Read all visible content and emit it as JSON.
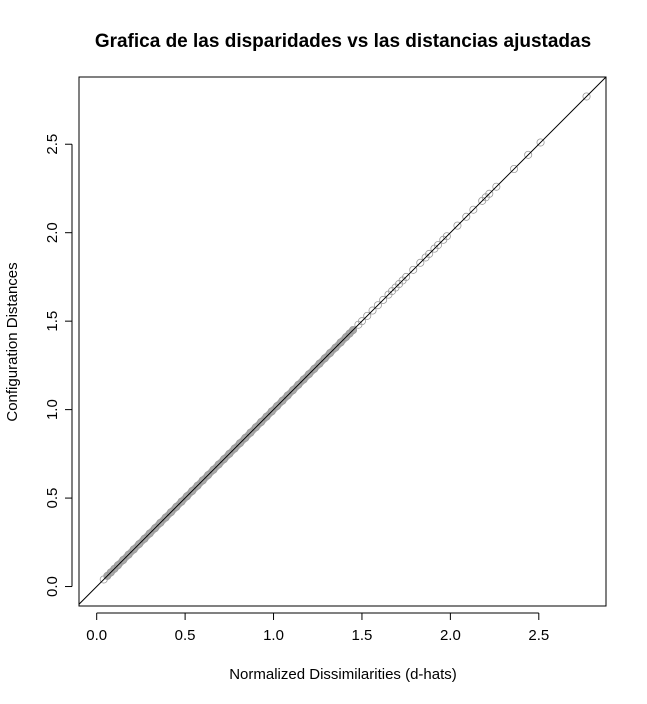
{
  "chart_data": {
    "type": "scatter",
    "title": "Grafica de las disparidades vs las distancias ajustadas",
    "xlabel": "Normalized Dissimilarities (d-hats)",
    "ylabel": "Configuration Distances",
    "xlim": [
      -0.1,
      2.88
    ],
    "ylim": [
      -0.11,
      2.88
    ],
    "x_ticks": [
      "0.0",
      "0.5",
      "1.0",
      "1.5",
      "2.0",
      "2.5"
    ],
    "y_ticks": [
      "0.0",
      "0.5",
      "1.0",
      "1.5",
      "2.0",
      "2.5"
    ],
    "reference_line": {
      "intercept": 0,
      "slope": 1
    },
    "grid": false,
    "legend": "none",
    "point_color": "#9a9a9a",
    "series": [
      {
        "points": [
          [
            0.04,
            0.04
          ],
          [
            0.06,
            0.06
          ],
          [
            0.08,
            0.08
          ],
          [
            0.1,
            0.1
          ],
          [
            0.12,
            0.12
          ],
          [
            0.15,
            0.15
          ],
          [
            0.18,
            0.18
          ],
          [
            0.21,
            0.21
          ],
          [
            0.24,
            0.24
          ],
          [
            0.27,
            0.27
          ],
          [
            0.3,
            0.3
          ],
          [
            0.33,
            0.33
          ],
          [
            0.36,
            0.36
          ],
          [
            0.39,
            0.39
          ],
          [
            0.42,
            0.42
          ],
          [
            0.45,
            0.45
          ],
          [
            0.48,
            0.48
          ],
          [
            0.51,
            0.51
          ],
          [
            0.54,
            0.54
          ],
          [
            0.57,
            0.57
          ],
          [
            0.6,
            0.6
          ],
          [
            0.63,
            0.63
          ],
          [
            0.66,
            0.66
          ],
          [
            0.69,
            0.69
          ],
          [
            0.72,
            0.72
          ],
          [
            0.75,
            0.75
          ],
          [
            0.78,
            0.78
          ],
          [
            0.81,
            0.81
          ],
          [
            0.84,
            0.84
          ],
          [
            0.87,
            0.87
          ],
          [
            0.9,
            0.9
          ],
          [
            0.93,
            0.93
          ],
          [
            0.96,
            0.96
          ],
          [
            0.99,
            0.99
          ],
          [
            1.02,
            1.02
          ],
          [
            1.05,
            1.05
          ],
          [
            1.08,
            1.08
          ],
          [
            1.11,
            1.11
          ],
          [
            1.14,
            1.14
          ],
          [
            1.17,
            1.17
          ],
          [
            1.2,
            1.2
          ],
          [
            1.23,
            1.23
          ],
          [
            1.26,
            1.26
          ],
          [
            1.29,
            1.29
          ],
          [
            1.32,
            1.32
          ],
          [
            1.35,
            1.35
          ],
          [
            1.38,
            1.38
          ],
          [
            1.41,
            1.41
          ],
          [
            1.43,
            1.43
          ],
          [
            1.45,
            1.45
          ],
          [
            1.48,
            1.48
          ],
          [
            1.5,
            1.5
          ],
          [
            1.53,
            1.53
          ],
          [
            1.56,
            1.56
          ],
          [
            1.59,
            1.59
          ],
          [
            1.62,
            1.62
          ],
          [
            1.65,
            1.65
          ],
          [
            1.67,
            1.67
          ],
          [
            1.69,
            1.69
          ],
          [
            1.71,
            1.71
          ],
          [
            1.73,
            1.73
          ],
          [
            1.75,
            1.75
          ],
          [
            1.79,
            1.79
          ],
          [
            1.83,
            1.83
          ],
          [
            1.86,
            1.86
          ],
          [
            1.88,
            1.88
          ],
          [
            1.91,
            1.91
          ],
          [
            1.93,
            1.93
          ],
          [
            1.96,
            1.96
          ],
          [
            1.98,
            1.98
          ],
          [
            2.04,
            2.04
          ],
          [
            2.09,
            2.09
          ],
          [
            2.13,
            2.13
          ],
          [
            2.18,
            2.18
          ],
          [
            2.2,
            2.2
          ],
          [
            2.22,
            2.22
          ],
          [
            2.26,
            2.26
          ],
          [
            2.36,
            2.36
          ],
          [
            2.44,
            2.44
          ],
          [
            2.51,
            2.51
          ],
          [
            2.77,
            2.77
          ]
        ]
      }
    ]
  }
}
